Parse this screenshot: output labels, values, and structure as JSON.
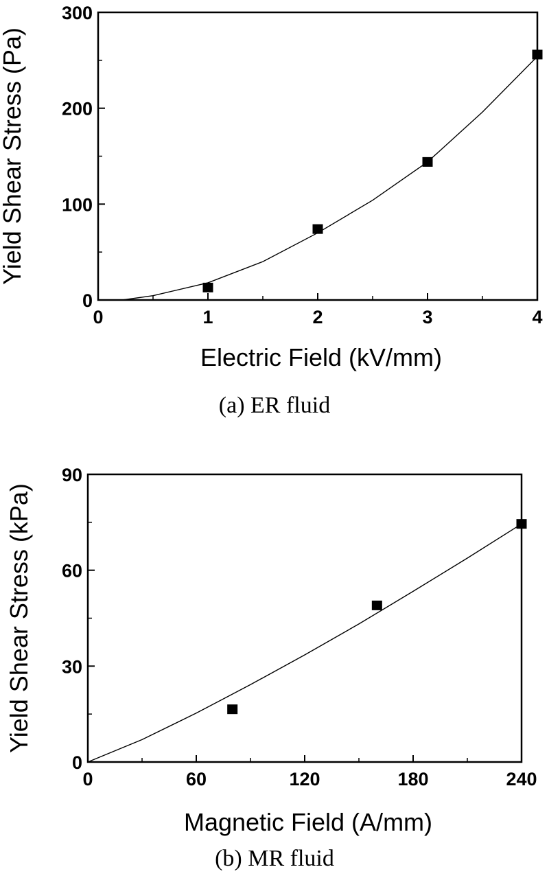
{
  "chart_data": [
    {
      "type": "scatter",
      "caption": "(a)  ER  fluid",
      "xlabel": "Electric Field (kV/mm)",
      "ylabel": "Yield Shear Stress (Pa)",
      "xlim": [
        0,
        4
      ],
      "ylim": [
        0,
        300
      ],
      "xticks": [
        0,
        1,
        2,
        3,
        4
      ],
      "yticks": [
        0,
        100,
        200,
        300
      ],
      "x_minor_step": 0.5,
      "y_minor_step": 50,
      "grid": false,
      "points": [
        {
          "x": 1,
          "y": 13
        },
        {
          "x": 2,
          "y": 74
        },
        {
          "x": 3,
          "y": 144
        },
        {
          "x": 4,
          "y": 256
        }
      ],
      "fit": {
        "type": "quadratic",
        "x": [
          0.22,
          0.5,
          1,
          1.5,
          2,
          2.5,
          3,
          3.5,
          4
        ],
        "y": [
          0,
          4.5,
          18,
          40,
          70,
          104,
          144,
          196,
          254
        ]
      }
    },
    {
      "type": "scatter",
      "caption": "(b)  MR  fluid",
      "xlabel": "Magnetic Field (A/mm)",
      "ylabel": "Yield Shear Stress (kPa)",
      "xlim": [
        0,
        240
      ],
      "ylim": [
        0,
        90
      ],
      "xticks": [
        0,
        60,
        120,
        180,
        240
      ],
      "yticks": [
        0,
        30,
        60,
        90
      ],
      "x_minor_step": 30,
      "y_minor_step": 15,
      "grid": false,
      "points": [
        {
          "x": 80,
          "y": 16.5
        },
        {
          "x": 160,
          "y": 49
        },
        {
          "x": 240,
          "y": 74.5
        }
      ],
      "fit": {
        "type": "power",
        "x": [
          0,
          30,
          60,
          90,
          120,
          150,
          180,
          210,
          240
        ],
        "y": [
          0,
          7,
          15.3,
          24.2,
          33.5,
          43.2,
          53.4,
          63.8,
          74.5
        ]
      }
    }
  ]
}
